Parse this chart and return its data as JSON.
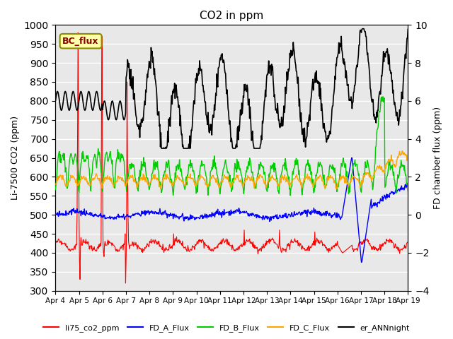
{
  "title": "CO2 in ppm",
  "ylabel_left": "Li-7500 CO2 (ppm)",
  "ylabel_right": "FD chamber flux (ppm)",
  "ylim_left": [
    300,
    1000
  ],
  "ylim_right": [
    -4,
    10
  ],
  "x_tick_labels": [
    "Apr 4",
    "Apr 5",
    "Apr 6",
    "Apr 7",
    "Apr 8",
    "Apr 9",
    "Apr 10",
    "Apr 11",
    "Apr 12",
    "Apr 13",
    "Apr 14",
    "Apr 15",
    "Apr 16",
    "Apr 17",
    "Apr 18",
    "Apr 19"
  ],
  "annotation_text": "BC_flux",
  "legend_entries": [
    "li75_co2_ppm",
    "FD_A_Flux",
    "FD_B_Flux",
    "FD_C_Flux",
    "er_ANNnight"
  ],
  "legend_colors": [
    "#ff0000",
    "#0000ff",
    "#00cc00",
    "#ffa500",
    "#000000"
  ],
  "line_colors": {
    "li75": "#ff0000",
    "FD_A": "#0000ff",
    "FD_B": "#00cc00",
    "FD_C": "#ffa500",
    "er_ANN": "#000000"
  },
  "background_color": "#e8e8e8",
  "grid_color": "#ffffff"
}
